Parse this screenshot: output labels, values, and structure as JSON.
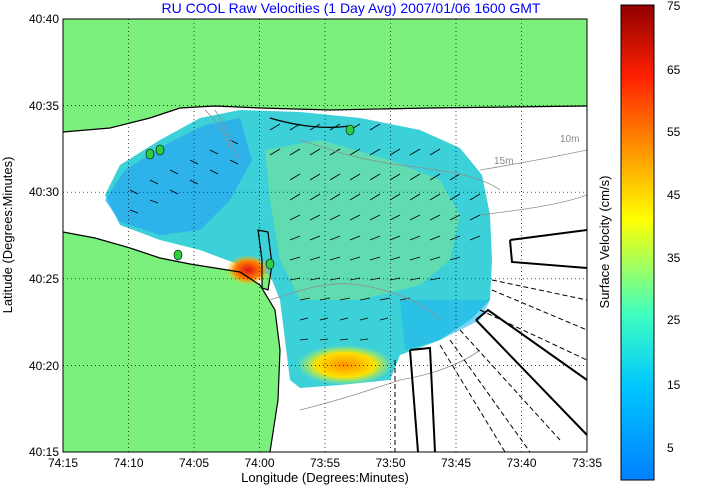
{
  "title": "RU COOL Raw Velocities (1 Day Avg) 2007/01/06 1600 GMT",
  "xlabel": "Longitude (Degrees:Minutes)",
  "ylabel": "Latitude (Degrees:Minutes)",
  "x_ticks": [
    "74:15",
    "74:10",
    "74:05",
    "74:00",
    "73:55",
    "73:50",
    "73:45",
    "73:40",
    "73:35"
  ],
  "y_ticks": [
    "40:40",
    "40:35",
    "40:30",
    "40:25",
    "40:20",
    "40:15"
  ],
  "colorbar": {
    "label": "Surface Velocity (cm/s)",
    "ticks": [
      "75",
      "65",
      "55",
      "45",
      "35",
      "25",
      "15",
      "5"
    ],
    "range": [
      0,
      75
    ]
  },
  "contour_labels": [
    "10m",
    "15m"
  ],
  "colors": {
    "land": "#7cf07c",
    "water_background": "#ffffff",
    "title": "#0000ff",
    "coastline": "#000000",
    "contour": "#909090",
    "station_marker": "#2ecc40"
  }
}
